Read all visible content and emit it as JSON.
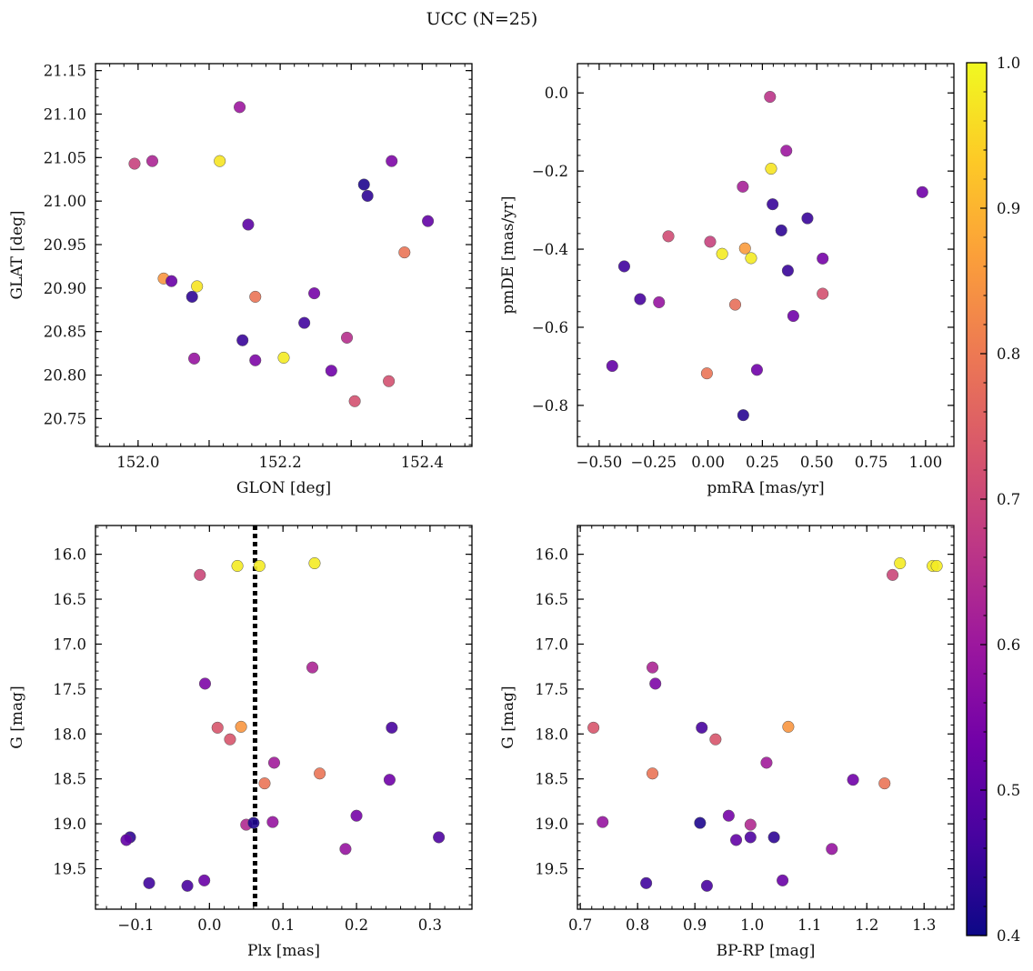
{
  "title": "UCC (N=25)",
  "colors": {
    "point_edge": "#555555",
    "ref_line": "#000000",
    "colormap_stops": [
      "#0d0887",
      "#46039f",
      "#7201a8",
      "#9c179e",
      "#bd3786",
      "#d8576b",
      "#ed7953",
      "#fb9f3a",
      "#fdca26",
      "#f0f921"
    ]
  },
  "colorbar": {
    "vmin": 0.4,
    "vmax": 1.0,
    "ticks": [
      "0.4",
      "0.5",
      "0.6",
      "0.7",
      "0.8",
      "0.9",
      "1.0"
    ],
    "colormap": "plasma"
  },
  "chart_data": [
    {
      "type": "scatter",
      "xlabel": "GLON [deg]",
      "ylabel": "GLAT [deg]",
      "xlim": [
        151.94,
        152.47
      ],
      "ylim": [
        20.718,
        21.158
      ],
      "xticks": [
        152.0,
        152.1,
        152.2,
        152.3,
        152.4
      ],
      "xtick_labels": [
        "152.0",
        "",
        "152.2",
        "",
        "152.4"
      ],
      "yticks": [
        20.75,
        20.8,
        20.85,
        20.9,
        20.95,
        21.0,
        21.05,
        21.1,
        21.15
      ],
      "ytick_labels": [
        "20.75",
        "20.80",
        "20.85",
        "20.90",
        "20.95",
        "21.00",
        "21.05",
        "21.10",
        "21.15"
      ],
      "points": [
        {
          "x": 152.143,
          "y": 21.108,
          "c": 0.6
        },
        {
          "x": 151.995,
          "y": 21.043,
          "c": 0.69
        },
        {
          "x": 152.02,
          "y": 21.046,
          "c": 0.63
        },
        {
          "x": 152.115,
          "y": 21.046,
          "c": 0.97
        },
        {
          "x": 152.357,
          "y": 21.046,
          "c": 0.55
        },
        {
          "x": 152.318,
          "y": 21.019,
          "c": 0.42
        },
        {
          "x": 152.323,
          "y": 21.006,
          "c": 0.44
        },
        {
          "x": 152.408,
          "y": 20.977,
          "c": 0.51
        },
        {
          "x": 152.155,
          "y": 20.973,
          "c": 0.5
        },
        {
          "x": 152.375,
          "y": 20.941,
          "c": 0.79
        },
        {
          "x": 152.036,
          "y": 20.911,
          "c": 0.85
        },
        {
          "x": 152.047,
          "y": 20.908,
          "c": 0.52
        },
        {
          "x": 152.083,
          "y": 20.902,
          "c": 0.97
        },
        {
          "x": 152.076,
          "y": 20.89,
          "c": 0.44
        },
        {
          "x": 152.165,
          "y": 20.89,
          "c": 0.79
        },
        {
          "x": 152.248,
          "y": 20.894,
          "c": 0.54
        },
        {
          "x": 152.234,
          "y": 20.86,
          "c": 0.46
        },
        {
          "x": 152.147,
          "y": 20.84,
          "c": 0.45
        },
        {
          "x": 152.294,
          "y": 20.843,
          "c": 0.65
        },
        {
          "x": 152.079,
          "y": 20.819,
          "c": 0.59
        },
        {
          "x": 152.165,
          "y": 20.817,
          "c": 0.55
        },
        {
          "x": 152.205,
          "y": 20.82,
          "c": 0.98
        },
        {
          "x": 152.272,
          "y": 20.805,
          "c": 0.53
        },
        {
          "x": 152.353,
          "y": 20.793,
          "c": 0.72
        },
        {
          "x": 152.305,
          "y": 20.77,
          "c": 0.72
        }
      ]
    },
    {
      "type": "scatter",
      "xlabel": "pmRA [mas/yr]",
      "ylabel": "pmDE [mas/yr]",
      "xlim": [
        -0.6,
        1.13
      ],
      "ylim": [
        -0.905,
        0.075
      ],
      "xticks": [
        -0.5,
        -0.25,
        0.0,
        0.25,
        0.5,
        0.75,
        1.0
      ],
      "xtick_labels": [
        "−0.50",
        "−0.25",
        "0.00",
        "0.25",
        "0.50",
        "0.75",
        "1.00"
      ],
      "yticks": [
        -0.8,
        -0.6,
        -0.4,
        -0.2,
        0.0
      ],
      "ytick_labels": [
        "−0.8",
        "−0.6",
        "−0.4",
        "−0.2",
        "0.0"
      ],
      "points": [
        {
          "x": 0.285,
          "y": -0.01,
          "c": 0.66
        },
        {
          "x": 0.36,
          "y": -0.148,
          "c": 0.6
        },
        {
          "x": 0.29,
          "y": -0.194,
          "c": 0.97
        },
        {
          "x": 0.985,
          "y": -0.254,
          "c": 0.53
        },
        {
          "x": 0.16,
          "y": -0.24,
          "c": 0.62
        },
        {
          "x": 0.297,
          "y": -0.285,
          "c": 0.45
        },
        {
          "x": 0.457,
          "y": -0.321,
          "c": 0.45
        },
        {
          "x": 0.337,
          "y": -0.352,
          "c": 0.44
        },
        {
          "x": -0.182,
          "y": -0.367,
          "c": 0.71
        },
        {
          "x": 0.01,
          "y": -0.381,
          "c": 0.69
        },
        {
          "x": 0.17,
          "y": -0.398,
          "c": 0.86
        },
        {
          "x": 0.065,
          "y": -0.412,
          "c": 0.98
        },
        {
          "x": 0.198,
          "y": -0.423,
          "c": 0.98
        },
        {
          "x": 0.527,
          "y": -0.424,
          "c": 0.54
        },
        {
          "x": -0.385,
          "y": -0.444,
          "c": 0.46
        },
        {
          "x": 0.367,
          "y": -0.455,
          "c": 0.45
        },
        {
          "x": 0.527,
          "y": -0.514,
          "c": 0.72
        },
        {
          "x": -0.312,
          "y": -0.528,
          "c": 0.47
        },
        {
          "x": -0.225,
          "y": -0.536,
          "c": 0.59
        },
        {
          "x": 0.125,
          "y": -0.542,
          "c": 0.78
        },
        {
          "x": 0.392,
          "y": -0.571,
          "c": 0.53
        },
        {
          "x": -0.44,
          "y": -0.699,
          "c": 0.51
        },
        {
          "x": 0.225,
          "y": -0.709,
          "c": 0.53
        },
        {
          "x": -0.005,
          "y": -0.718,
          "c": 0.79
        },
        {
          "x": 0.162,
          "y": -0.825,
          "c": 0.43
        }
      ]
    },
    {
      "type": "scatter",
      "xlabel": "Plx [mas]",
      "ylabel": "G [mag]",
      "xlim": [
        -0.155,
        0.357
      ],
      "ylim": [
        19.95,
        15.68
      ],
      "y_inverted": true,
      "xticks": [
        -0.1,
        0.0,
        0.1,
        0.2,
        0.3
      ],
      "xtick_labels": [
        "−0.1",
        "0.0",
        "0.1",
        "0.2",
        "0.3"
      ],
      "yticks": [
        16.0,
        16.5,
        17.0,
        17.5,
        18.0,
        18.5,
        19.0,
        19.5
      ],
      "ytick_labels": [
        "16.0",
        "16.5",
        "17.0",
        "17.5",
        "18.0",
        "18.5",
        "19.0",
        "19.5"
      ],
      "vline": {
        "x": 0.062,
        "style": "dotted"
      },
      "points": [
        {
          "x": 0.038,
          "y": 16.13,
          "c": 0.98
        },
        {
          "x": 0.068,
          "y": 16.13,
          "c": 0.98
        },
        {
          "x": 0.143,
          "y": 16.1,
          "c": 0.98
        },
        {
          "x": -0.013,
          "y": 16.23,
          "c": 0.7
        },
        {
          "x": 0.14,
          "y": 17.26,
          "c": 0.63
        },
        {
          "x": -0.006,
          "y": 17.44,
          "c": 0.55
        },
        {
          "x": 0.011,
          "y": 17.93,
          "c": 0.73
        },
        {
          "x": 0.043,
          "y": 17.92,
          "c": 0.85
        },
        {
          "x": 0.248,
          "y": 17.93,
          "c": 0.47
        },
        {
          "x": 0.028,
          "y": 18.06,
          "c": 0.73
        },
        {
          "x": 0.088,
          "y": 18.32,
          "c": 0.61
        },
        {
          "x": 0.15,
          "y": 18.44,
          "c": 0.79
        },
        {
          "x": 0.075,
          "y": 18.55,
          "c": 0.79
        },
        {
          "x": 0.245,
          "y": 18.51,
          "c": 0.53
        },
        {
          "x": 0.05,
          "y": 19.01,
          "c": 0.64
        },
        {
          "x": 0.06,
          "y": 18.99,
          "c": 0.42
        },
        {
          "x": 0.086,
          "y": 18.98,
          "c": 0.59
        },
        {
          "x": 0.2,
          "y": 18.91,
          "c": 0.54
        },
        {
          "x": 0.185,
          "y": 19.28,
          "c": 0.59
        },
        {
          "x": 0.312,
          "y": 19.15,
          "c": 0.48
        },
        {
          "x": -0.108,
          "y": 19.15,
          "c": 0.44
        },
        {
          "x": -0.113,
          "y": 19.18,
          "c": 0.51
        },
        {
          "x": -0.082,
          "y": 19.66,
          "c": 0.46
        },
        {
          "x": -0.03,
          "y": 19.69,
          "c": 0.47
        },
        {
          "x": -0.007,
          "y": 19.63,
          "c": 0.52
        }
      ]
    },
    {
      "type": "scatter",
      "xlabel": "BP-RP [mag]",
      "ylabel": "G [mag]",
      "xlim": [
        0.695,
        1.352
      ],
      "ylim": [
        19.95,
        15.68
      ],
      "y_inverted": true,
      "xticks": [
        0.7,
        0.8,
        0.9,
        1.0,
        1.1,
        1.2,
        1.3
      ],
      "xtick_labels": [
        "0.7",
        "0.8",
        "0.9",
        "1.0",
        "1.1",
        "1.2",
        "1.3"
      ],
      "yticks": [
        16.0,
        16.5,
        17.0,
        17.5,
        18.0,
        18.5,
        19.0,
        19.5
      ],
      "ytick_labels": [
        "16.0",
        "16.5",
        "17.0",
        "17.5",
        "18.0",
        "18.5",
        "19.0",
        "19.5"
      ],
      "points": [
        {
          "x": 1.258,
          "y": 16.1,
          "c": 0.98
        },
        {
          "x": 1.315,
          "y": 16.13,
          "c": 0.98
        },
        {
          "x": 1.322,
          "y": 16.13,
          "c": 0.98
        },
        {
          "x": 1.245,
          "y": 16.23,
          "c": 0.7
        },
        {
          "x": 0.826,
          "y": 17.26,
          "c": 0.63
        },
        {
          "x": 0.831,
          "y": 17.44,
          "c": 0.55
        },
        {
          "x": 0.723,
          "y": 17.93,
          "c": 0.73
        },
        {
          "x": 1.063,
          "y": 17.92,
          "c": 0.85
        },
        {
          "x": 0.912,
          "y": 17.93,
          "c": 0.47
        },
        {
          "x": 0.936,
          "y": 18.06,
          "c": 0.73
        },
        {
          "x": 1.025,
          "y": 18.32,
          "c": 0.61
        },
        {
          "x": 0.826,
          "y": 18.44,
          "c": 0.79
        },
        {
          "x": 1.231,
          "y": 18.55,
          "c": 0.79
        },
        {
          "x": 1.176,
          "y": 18.51,
          "c": 0.53
        },
        {
          "x": 0.739,
          "y": 18.98,
          "c": 0.59
        },
        {
          "x": 0.909,
          "y": 18.99,
          "c": 0.42
        },
        {
          "x": 0.959,
          "y": 18.91,
          "c": 0.54
        },
        {
          "x": 0.997,
          "y": 19.01,
          "c": 0.64
        },
        {
          "x": 0.972,
          "y": 19.18,
          "c": 0.51
        },
        {
          "x": 0.997,
          "y": 19.15,
          "c": 0.48
        },
        {
          "x": 1.038,
          "y": 19.15,
          "c": 0.44
        },
        {
          "x": 1.139,
          "y": 19.28,
          "c": 0.59
        },
        {
          "x": 0.815,
          "y": 19.66,
          "c": 0.46
        },
        {
          "x": 0.921,
          "y": 19.69,
          "c": 0.47
        },
        {
          "x": 1.053,
          "y": 19.63,
          "c": 0.52
        }
      ]
    }
  ]
}
